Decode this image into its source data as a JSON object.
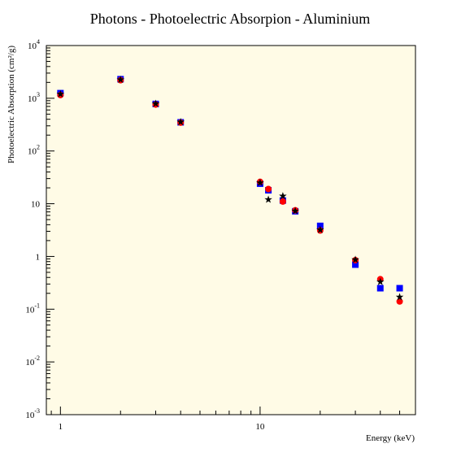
{
  "chart_data": {
    "type": "scatter",
    "title": "Photons - Photoelectric Absorpion - Aluminium",
    "xlabel": "Energy (keV)",
    "ylabel": "Photoelectric Absorption (cm²/g)",
    "xscale": "log",
    "yscale": "log",
    "xlim": [
      0.85,
      60
    ],
    "ylim": [
      0.001,
      10000
    ],
    "plot_background": "#fffbe6",
    "x_tick_labels": [
      {
        "value": 1,
        "label": "1"
      },
      {
        "value": 10,
        "label": "10"
      }
    ],
    "y_tick_labels": [
      {
        "value": 10000,
        "base": "10",
        "exp": "4"
      },
      {
        "value": 1000,
        "base": "10",
        "exp": "3"
      },
      {
        "value": 100,
        "base": "10",
        "exp": "2"
      },
      {
        "value": 10,
        "base": "10",
        "exp": ""
      },
      {
        "value": 1,
        "base": "1",
        "exp": ""
      },
      {
        "value": 0.1,
        "base": "10",
        "exp": "-1"
      },
      {
        "value": 0.01,
        "base": "10",
        "exp": "-2"
      },
      {
        "value": 0.001,
        "base": "10",
        "exp": "-3"
      }
    ],
    "series": [
      {
        "marker": "square",
        "color": "#0000ff",
        "points": [
          [
            1,
            1250
          ],
          [
            2,
            2300
          ],
          [
            3,
            780
          ],
          [
            4,
            350
          ],
          [
            10,
            24
          ],
          [
            11,
            18
          ],
          [
            13,
            11.5
          ],
          [
            15,
            7.2
          ],
          [
            20,
            3.8
          ],
          [
            30,
            0.7
          ],
          [
            40,
            0.25
          ],
          [
            50,
            0.25
          ]
        ]
      },
      {
        "marker": "circle",
        "color": "#ff0000",
        "points": [
          [
            1,
            1150
          ],
          [
            2,
            2200
          ],
          [
            3,
            760
          ],
          [
            4,
            345
          ],
          [
            10,
            26
          ],
          [
            11,
            19
          ],
          [
            13,
            11
          ],
          [
            15,
            7.5
          ],
          [
            20,
            3.1
          ],
          [
            30,
            0.85
          ],
          [
            40,
            0.37
          ],
          [
            50,
            0.14
          ]
        ]
      },
      {
        "marker": "star",
        "color": "#000000",
        "points": [
          [
            1,
            1200
          ],
          [
            2,
            2250
          ],
          [
            3,
            790
          ],
          [
            4,
            355
          ],
          [
            10,
            25
          ],
          [
            11,
            12
          ],
          [
            13,
            14
          ],
          [
            15,
            7.3
          ],
          [
            20,
            3.2
          ],
          [
            30,
            0.87
          ],
          [
            40,
            0.33
          ],
          [
            50,
            0.17
          ]
        ]
      }
    ]
  }
}
